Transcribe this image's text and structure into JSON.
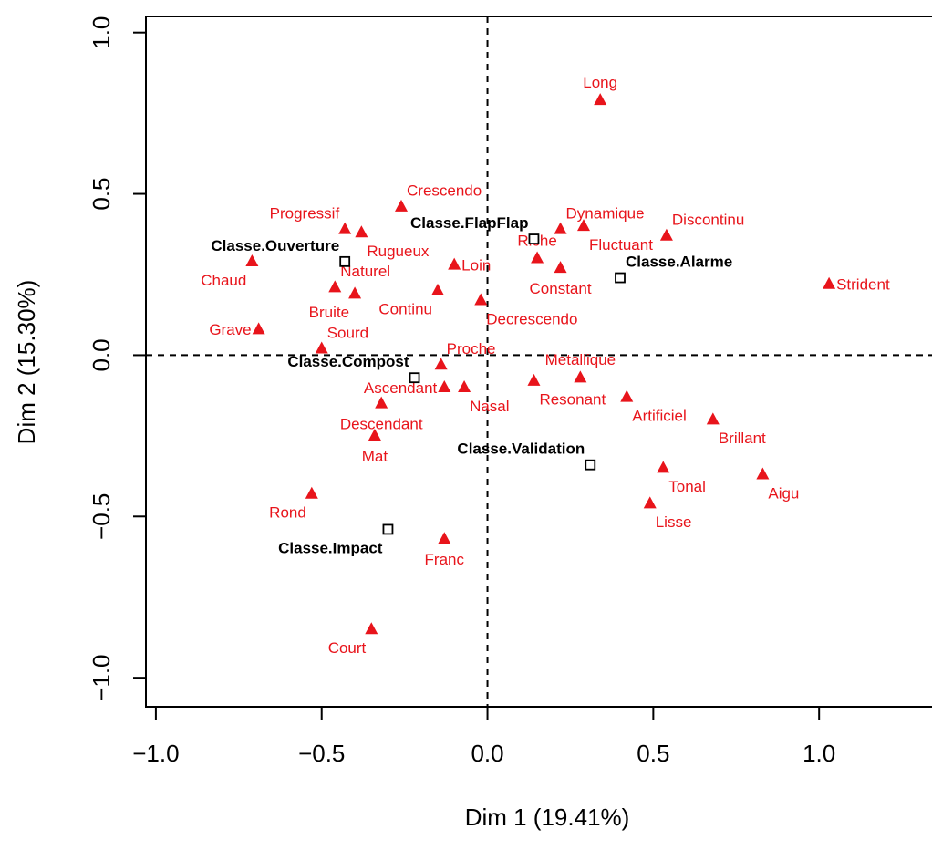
{
  "chart_data": {
    "type": "scatter",
    "xlabel": "Dim 1 (19.41%)",
    "ylabel": "Dim 2 (15.30%)",
    "xlim": [
      -1.03,
      1.39
    ],
    "ylim": [
      -1.09,
      1.05
    ],
    "xticks": [
      -1.0,
      -0.5,
      0.0,
      0.5,
      1.0
    ],
    "xtick_labels": [
      "−1.0",
      "−0.5",
      "0.0",
      "0.5",
      "1.0"
    ],
    "yticks": [
      -1.0,
      -0.5,
      0.0,
      0.5,
      1.0
    ],
    "ytick_labels": [
      "−1.0",
      "−0.5",
      "0.0",
      "0.5",
      "1.0"
    ],
    "reference_lines": {
      "x": 0,
      "y": 0,
      "style": "dashed"
    },
    "grid": false,
    "series": [
      {
        "marker": "triangle",
        "color": "#e8141b",
        "points": [
          {
            "label": "Long",
            "x": 0.34,
            "y": 0.79,
            "pos": "above"
          },
          {
            "label": "Crescendo",
            "x": -0.26,
            "y": 0.46,
            "pos": "above-right"
          },
          {
            "label": "Dynamique",
            "x": 0.22,
            "y": 0.39,
            "pos": "above-right"
          },
          {
            "label": "Discontinu",
            "x": 0.54,
            "y": 0.37,
            "pos": "above-right"
          },
          {
            "label": "Progressif",
            "x": -0.43,
            "y": 0.39,
            "pos": "above-left"
          },
          {
            "label": "Rugueux",
            "x": -0.38,
            "y": 0.38,
            "pos": "below-right"
          },
          {
            "label": "Fluctuant",
            "x": 0.29,
            "y": 0.4,
            "pos": "below-right"
          },
          {
            "label": "Riche",
            "x": 0.15,
            "y": 0.3,
            "pos": "above"
          },
          {
            "label": "Constant",
            "x": 0.22,
            "y": 0.27,
            "pos": "below"
          },
          {
            "label": "Chaud",
            "x": -0.71,
            "y": 0.29,
            "pos": "below-left"
          },
          {
            "label": "Loin",
            "x": -0.1,
            "y": 0.28,
            "pos": "right"
          },
          {
            "label": "Naturel",
            "x": -0.46,
            "y": 0.21,
            "pos": "above-right"
          },
          {
            "label": "Bruite",
            "x": -0.4,
            "y": 0.19,
            "pos": "below-left"
          },
          {
            "label": "Continu",
            "x": -0.15,
            "y": 0.2,
            "pos": "below-left"
          },
          {
            "label": "Decrescendo",
            "x": -0.02,
            "y": 0.17,
            "pos": "below-right"
          },
          {
            "label": "Strident",
            "x": 1.03,
            "y": 0.22,
            "pos": "right"
          },
          {
            "label": "Grave",
            "x": -0.69,
            "y": 0.08,
            "pos": "left"
          },
          {
            "label": "Sourd",
            "x": -0.5,
            "y": 0.02,
            "pos": "above-right"
          },
          {
            "label": "Proche",
            "x": -0.14,
            "y": -0.03,
            "pos": "above-right"
          },
          {
            "label": "Metallique",
            "x": 0.28,
            "y": -0.07,
            "pos": "above"
          },
          {
            "label": "Ascendant",
            "x": -0.13,
            "y": -0.1,
            "pos": "left"
          },
          {
            "label": "Nasal",
            "x": -0.07,
            "y": -0.1,
            "pos": "below-right"
          },
          {
            "label": "Resonant",
            "x": 0.14,
            "y": -0.08,
            "pos": "below-right"
          },
          {
            "label": "Artificiel",
            "x": 0.42,
            "y": -0.13,
            "pos": "below-right"
          },
          {
            "label": "Descendant",
            "x": -0.32,
            "y": -0.15,
            "pos": "below"
          },
          {
            "label": "Brillant",
            "x": 0.68,
            "y": -0.2,
            "pos": "below-right"
          },
          {
            "label": "Mat",
            "x": -0.34,
            "y": -0.25,
            "pos": "below"
          },
          {
            "label": "Tonal",
            "x": 0.53,
            "y": -0.35,
            "pos": "below-right"
          },
          {
            "label": "Aigu",
            "x": 0.83,
            "y": -0.37,
            "pos": "below-right"
          },
          {
            "label": "Rond",
            "x": -0.53,
            "y": -0.43,
            "pos": "below-left"
          },
          {
            "label": "Lisse",
            "x": 0.49,
            "y": -0.46,
            "pos": "below-right"
          },
          {
            "label": "Franc",
            "x": -0.13,
            "y": -0.57,
            "pos": "below"
          },
          {
            "label": "Court",
            "x": -0.35,
            "y": -0.85,
            "pos": "below-left"
          }
        ]
      },
      {
        "marker": "square",
        "color": "#000000",
        "bold": true,
        "points": [
          {
            "label": "Classe.FlapFlap",
            "x": 0.14,
            "y": 0.36,
            "pos": "above-left"
          },
          {
            "label": "Classe.Ouverture",
            "x": -0.43,
            "y": 0.29,
            "pos": "above-left"
          },
          {
            "label": "Classe.Alarme",
            "x": 0.4,
            "y": 0.24,
            "pos": "above-right"
          },
          {
            "label": "Classe.Compost",
            "x": -0.22,
            "y": -0.07,
            "pos": "above-left"
          },
          {
            "label": "Classe.Validation",
            "x": 0.31,
            "y": -0.34,
            "pos": "above-left"
          },
          {
            "label": "Classe.Impact",
            "x": -0.3,
            "y": -0.54,
            "pos": "below-left"
          }
        ]
      }
    ]
  }
}
